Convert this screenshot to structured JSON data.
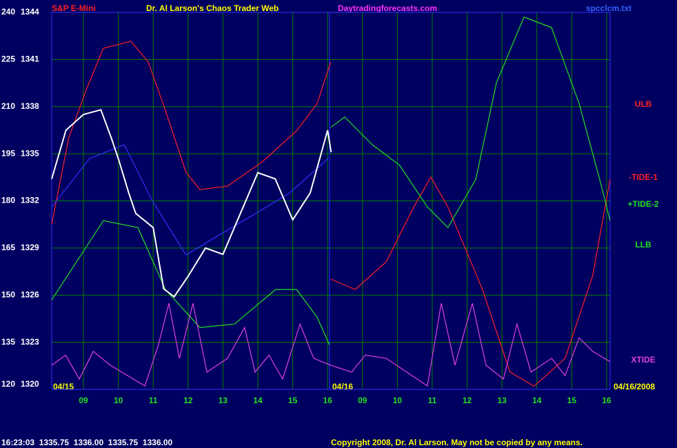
{
  "chart_data": {
    "type": "line",
    "title": "Dr. Al Larson's Chaos Trader Web",
    "instrument": "S&P E-Mini",
    "site": "Daytradingforecasts.com",
    "file": "spcclcm.txt",
    "date_labels": [
      "04/15",
      "04/16",
      "04/16/2008"
    ],
    "status": "16:23:03  1335.75  1336.00  1335.75  1336.00",
    "copyright": "Copyright 2008, Dr. Al Larson. May not be copied by any means.",
    "grid": true,
    "xlim": [
      -0.91,
      15.1
    ],
    "xticks": [
      {
        "value": 0,
        "label": "09"
      },
      {
        "value": 1,
        "label": "10"
      },
      {
        "value": 2,
        "label": "11"
      },
      {
        "value": 3,
        "label": "12"
      },
      {
        "value": 4,
        "label": "13"
      },
      {
        "value": 5,
        "label": "14"
      },
      {
        "value": 6,
        "label": "15"
      },
      {
        "value": 7,
        "label": "16"
      },
      {
        "value": 8,
        "label": "09"
      },
      {
        "value": 9,
        "label": "10"
      },
      {
        "value": 10,
        "label": "11"
      },
      {
        "value": 11,
        "label": "12"
      },
      {
        "value": 12,
        "label": "13"
      },
      {
        "value": 13,
        "label": "14"
      },
      {
        "value": 14,
        "label": "15"
      },
      {
        "value": 15,
        "label": "16"
      }
    ],
    "ylim": [
      120,
      240
    ],
    "yticks": [
      120,
      135,
      150,
      165,
      180,
      195,
      210,
      225,
      240
    ],
    "y2lim": [
      1320,
      1344
    ],
    "y2ticks": [
      1320,
      1323,
      1326,
      1329,
      1332,
      1335,
      1338,
      1341,
      1344
    ],
    "series": [
      {
        "name": "ULB",
        "color": "#ff2020",
        "x": [
          -0.91,
          -0.42,
          0.08,
          0.57,
          1.36,
          1.86,
          2.35,
          2.94,
          3.34,
          4.13,
          5.12,
          6.11,
          6.7,
          7.09
        ],
        "values": [
          172.6,
          200.1,
          215.4,
          228.6,
          230.8,
          224.2,
          208.8,
          189.1,
          183.6,
          184.7,
          192.4,
          202.3,
          211.0,
          224.2
        ]
      },
      {
        "name": "-TIDE-1",
        "color": "#ff2020",
        "x": [
          7.09,
          7.79,
          8.68,
          9.47,
          9.96,
          10.45,
          11.44,
          12.23,
          12.92,
          13.81,
          14.6,
          15.1
        ],
        "values": [
          155.1,
          151.8,
          160.6,
          178.1,
          187.6,
          178.1,
          151.8,
          125.5,
          121.0,
          129.9,
          156.2,
          186.9
        ]
      },
      {
        "name": "+TIDE-2",
        "color": "#20e020",
        "x": [
          7.09,
          7.49,
          8.28,
          9.07,
          9.86,
          10.45,
          11.25,
          11.84,
          12.63,
          13.42,
          14.21,
          14.8,
          15.1
        ],
        "values": [
          203.4,
          206.7,
          197.9,
          191.3,
          178.1,
          171.5,
          186.9,
          217.6,
          238.5,
          235.2,
          211.0,
          186.9,
          173.7
        ]
      },
      {
        "name": "LLB",
        "color": "#20e020",
        "x": [
          -0.91,
          0.57,
          1.56,
          2.35,
          3.34,
          4.33,
          5.51,
          6.11,
          6.7,
          7.05
        ],
        "values": [
          148.5,
          173.7,
          171.5,
          151.8,
          139.7,
          140.8,
          151.8,
          151.8,
          143.0,
          134.2
        ]
      },
      {
        "name": "XTIDE",
        "color": "#e040e0",
        "x": [
          -0.91,
          -0.51,
          -0.12,
          0.28,
          0.77,
          1.26,
          1.76,
          2.15,
          2.45,
          2.75,
          3.14,
          3.54,
          4.13,
          4.62,
          4.92,
          5.32,
          5.71,
          6.21,
          6.6,
          7.09,
          7.69,
          8.08,
          8.68,
          9.27,
          9.86,
          10.26,
          10.65,
          11.15,
          11.54,
          12.04,
          12.43,
          12.83,
          13.42,
          13.81,
          14.21,
          14.6,
          15.1
        ],
        "values": [
          127.7,
          130.9,
          123.3,
          132.1,
          127.7,
          124.4,
          121.1,
          134.2,
          147.4,
          129.9,
          147.4,
          125.5,
          129.9,
          139.7,
          125.5,
          130.9,
          123.3,
          140.8,
          129.9,
          127.7,
          125.5,
          130.9,
          129.9,
          125.5,
          121.1,
          147.4,
          127.7,
          147.4,
          127.7,
          123.3,
          140.8,
          125.5,
          129.9,
          124.4,
          136.4,
          132.1,
          128.8
        ]
      },
      {
        "color": "#3030ff",
        "x": [
          -0.91,
          0.18,
          1.17,
          1.96,
          2.94,
          3.93,
          4.92,
          5.91,
          7.02
        ],
        "values": [
          178.1,
          193.5,
          197.9,
          180.3,
          162.8,
          169.4,
          175.9,
          182.5,
          193.5
        ]
      },
      {
        "color": "#ffffff",
        "axis": "y2",
        "x": [
          -0.91,
          -0.5,
          0,
          0.5,
          0.8,
          1,
          1.3,
          1.5,
          2,
          2.3,
          2.6,
          3,
          3.5,
          4,
          4.5,
          5,
          5.5,
          6,
          6.5,
          7,
          7.1
        ],
        "values": [
          1333.4,
          1336.5,
          1337.5,
          1337.8,
          1336.0,
          1334.7,
          1332.5,
          1331.2,
          1330.3,
          1326.4,
          1325.9,
          1327.2,
          1329.0,
          1328.6,
          1331.2,
          1333.8,
          1333.4,
          1330.8,
          1332.5,
          1336.5,
          1335.1
        ]
      }
    ]
  }
}
